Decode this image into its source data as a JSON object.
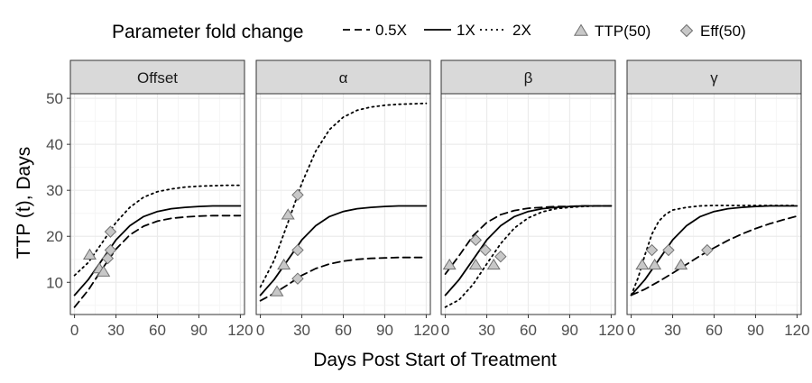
{
  "legend": {
    "line_title": "Parameter fold change",
    "line_items": [
      {
        "label": "0.5X",
        "dash": "dashed"
      },
      {
        "label": "1X",
        "dash": "solid"
      },
      {
        "label": "2X",
        "dash": "dotted"
      }
    ],
    "marker_items": [
      {
        "label": "TTP(50)",
        "shape": "triangle"
      },
      {
        "label": "Eff(50)",
        "shape": "diamond"
      }
    ],
    "placement": "top"
  },
  "chart_data": {
    "type": "line",
    "xlabel": "Days Post Start of Treatment",
    "ylabel": "TTP (t), Days",
    "xlim": [
      -3,
      123
    ],
    "ylim": [
      3,
      51
    ],
    "xticks": [
      0,
      30,
      60,
      90,
      120
    ],
    "yticks": [
      10,
      20,
      30,
      40,
      50
    ],
    "grid": true,
    "colors": {
      "panel_strip": "#d9d9d9",
      "grid_major": "#ebebeb",
      "grid_minor": "#f5f5f5",
      "marker_fill": "#c8c8c8",
      "marker_stroke": "#707070",
      "line": "#000000"
    },
    "facets": [
      {
        "strip": "Offset",
        "series": [
          {
            "name": "0.5X",
            "x": [
              0,
              10,
              20,
              30,
              40,
              50,
              60,
              70,
              80,
              90,
              100,
              110,
              120
            ],
            "y": [
              4.6,
              8.3,
              12.9,
              17.2,
              20.3,
              22.2,
              23.3,
              23.9,
              24.2,
              24.4,
              24.5,
              24.5,
              24.5
            ]
          },
          {
            "name": "1X",
            "x": [
              0,
              10,
              20,
              30,
              40,
              50,
              60,
              70,
              80,
              90,
              100,
              110,
              120
            ],
            "y": [
              7.2,
              10.6,
              14.9,
              19.2,
              22.3,
              24.3,
              25.4,
              26.0,
              26.3,
              26.5,
              26.6,
              26.6,
              26.6
            ]
          },
          {
            "name": "2X",
            "x": [
              0,
              10,
              20,
              30,
              40,
              50,
              60,
              70,
              80,
              90,
              100,
              110,
              120
            ],
            "y": [
              11.5,
              14.3,
              18.6,
              23.0,
              26.3,
              28.5,
              29.7,
              30.3,
              30.7,
              30.9,
              31.0,
              31.1,
              31.1
            ]
          }
        ],
        "ttp50": [
          {
            "x": 11,
            "y": 16.0
          },
          {
            "x": 18,
            "y": 13.0
          },
          {
            "x": 21,
            "y": 12.3
          }
        ],
        "eff50": [
          {
            "x": 24,
            "y": 15.2
          },
          {
            "x": 26,
            "y": 17.0
          },
          {
            "x": 26,
            "y": 21.0
          }
        ]
      },
      {
        "strip": "α",
        "series": [
          {
            "name": "0.5X",
            "x": [
              0,
              10,
              20,
              30,
              40,
              50,
              60,
              70,
              80,
              90,
              100,
              110,
              120
            ],
            "y": [
              6.0,
              7.6,
              9.5,
              11.5,
              13.0,
              14.0,
              14.6,
              15.0,
              15.2,
              15.3,
              15.4,
              15.4,
              15.4
            ]
          },
          {
            "name": "1X",
            "x": [
              0,
              10,
              20,
              30,
              40,
              50,
              60,
              70,
              80,
              90,
              100,
              110,
              120
            ],
            "y": [
              7.2,
              10.6,
              14.9,
              19.2,
              22.3,
              24.3,
              25.4,
              26.0,
              26.3,
              26.5,
              26.6,
              26.6,
              26.6
            ]
          },
          {
            "name": "2X",
            "x": [
              0,
              10,
              20,
              30,
              40,
              50,
              60,
              70,
              80,
              90,
              100,
              110,
              120
            ],
            "y": [
              9.0,
              14.8,
              23.0,
              31.5,
              38.5,
              43.2,
              45.9,
              47.4,
              48.1,
              48.5,
              48.7,
              48.8,
              48.9
            ]
          }
        ],
        "ttp50": [
          {
            "x": 12,
            "y": 8.0
          },
          {
            "x": 17,
            "y": 13.8
          },
          {
            "x": 20,
            "y": 24.7
          }
        ],
        "eff50": [
          {
            "x": 27,
            "y": 10.8
          },
          {
            "x": 27,
            "y": 17.0
          },
          {
            "x": 27,
            "y": 29.0
          }
        ]
      },
      {
        "strip": "β",
        "series": [
          {
            "name": "0.5X",
            "x": [
              0,
              10,
              20,
              30,
              40,
              50,
              60,
              70,
              80,
              90,
              100,
              110,
              120
            ],
            "y": [
              11.8,
              15.8,
              20.1,
              23.0,
              24.7,
              25.6,
              26.1,
              26.3,
              26.5,
              26.5,
              26.6,
              26.6,
              26.6
            ]
          },
          {
            "name": "1X",
            "x": [
              0,
              10,
              20,
              30,
              40,
              50,
              60,
              70,
              80,
              90,
              100,
              110,
              120
            ],
            "y": [
              7.2,
              10.6,
              14.9,
              19.2,
              22.3,
              24.3,
              25.4,
              26.0,
              26.3,
              26.5,
              26.6,
              26.6,
              26.6
            ]
          },
          {
            "name": "2X",
            "x": [
              0,
              10,
              20,
              30,
              40,
              50,
              60,
              70,
              80,
              90,
              100,
              110,
              120
            ],
            "y": [
              4.6,
              6.2,
              9.5,
              14.0,
              18.4,
              21.8,
              24.0,
              25.3,
              26.0,
              26.3,
              26.5,
              26.6,
              26.6
            ]
          }
        ],
        "ttp50": [
          {
            "x": 3,
            "y": 13.8
          },
          {
            "x": 22,
            "y": 13.8
          },
          {
            "x": 35,
            "y": 13.8
          }
        ],
        "eff50": [
          {
            "x": 22,
            "y": 19.2
          },
          {
            "x": 29,
            "y": 17.0
          },
          {
            "x": 40,
            "y": 15.6
          }
        ]
      },
      {
        "strip": "γ",
        "series": [
          {
            "name": "0.5X",
            "x": [
              0,
              10,
              20,
              30,
              40,
              50,
              60,
              70,
              80,
              90,
              100,
              110,
              120
            ],
            "y": [
              7.2,
              8.5,
              10.2,
              12.0,
              13.9,
              15.8,
              17.5,
              19.1,
              20.5,
              21.7,
              22.7,
              23.6,
              24.4
            ]
          },
          {
            "name": "1X",
            "x": [
              0,
              10,
              20,
              30,
              40,
              50,
              60,
              70,
              80,
              90,
              100,
              110,
              120
            ],
            "y": [
              7.2,
              10.6,
              14.9,
              19.2,
              22.3,
              24.3,
              25.4,
              26.0,
              26.3,
              26.5,
              26.6,
              26.6,
              26.6
            ]
          },
          {
            "name": "2X",
            "x": [
              0,
              5,
              10,
              15,
              20,
              25,
              30,
              40,
              50,
              60,
              70,
              80,
              90,
              100,
              110,
              120
            ],
            "y": [
              7.2,
              11.0,
              16.0,
              20.5,
              23.3,
              24.8,
              25.7,
              26.3,
              26.6,
              26.7,
              26.7,
              26.7,
              26.7,
              26.7,
              26.7,
              26.7
            ]
          }
        ],
        "ttp50": [
          {
            "x": 8,
            "y": 13.8
          },
          {
            "x": 17,
            "y": 13.8
          },
          {
            "x": 36,
            "y": 13.8
          }
        ],
        "eff50": [
          {
            "x": 15,
            "y": 17.0
          },
          {
            "x": 27,
            "y": 17.0
          },
          {
            "x": 55,
            "y": 17.0
          }
        ]
      }
    ]
  }
}
